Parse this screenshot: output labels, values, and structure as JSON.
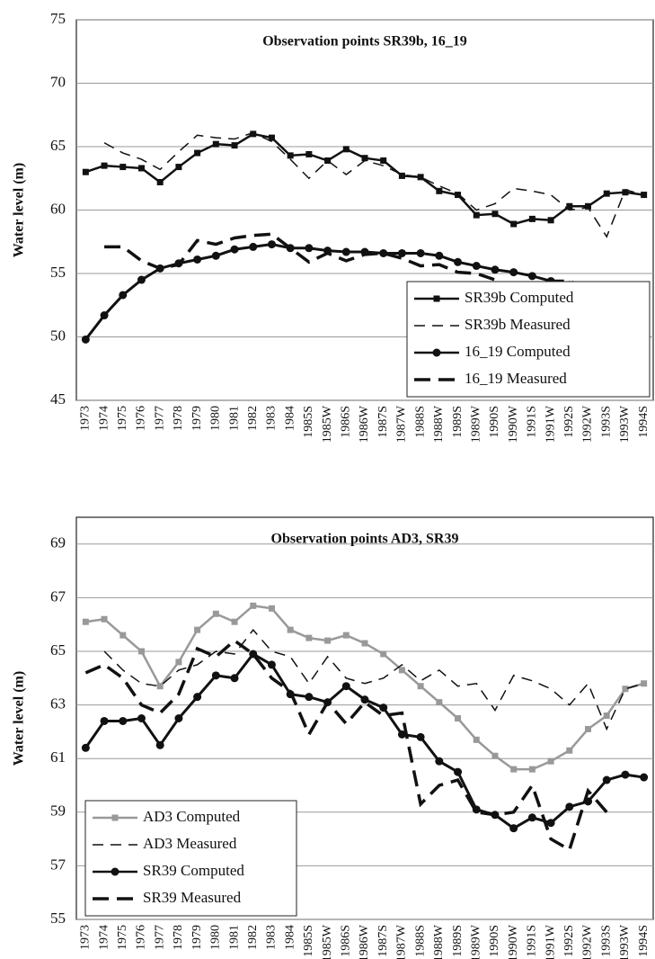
{
  "chart_data": [
    {
      "type": "line",
      "title": "Observation points SR39b, 16_19",
      "ylabel": "Water level (m)",
      "categories": [
        "1973",
        "1974",
        "1975",
        "1976",
        "1977",
        "1978",
        "1979",
        "1980",
        "1981",
        "1982",
        "1983",
        "1984",
        "1985S",
        "1985W",
        "1986S",
        "1986W",
        "1987S",
        "1987W",
        "1988S",
        "1988W",
        "1989S",
        "1989W",
        "1990S",
        "1990W",
        "1991S",
        "1991W",
        "1992S",
        "1992W",
        "1993S",
        "1993W",
        "1994S"
      ],
      "ylim": [
        45,
        75
      ],
      "yticks": [
        45,
        50,
        55,
        60,
        65,
        70,
        75
      ],
      "grid": true,
      "legend": "lower right",
      "series": [
        {
          "name": "SR39b Computed",
          "color": "#111111",
          "dash": false,
          "marker": "square",
          "values": [
            63.0,
            63.5,
            63.4,
            63.3,
            62.2,
            63.4,
            64.5,
            65.2,
            65.1,
            66.0,
            65.7,
            64.3,
            64.4,
            63.9,
            64.8,
            64.1,
            63.9,
            62.7,
            62.6,
            61.5,
            61.2,
            59.6,
            59.7,
            58.9,
            59.3,
            59.2,
            60.3,
            60.3,
            61.3,
            61.4,
            61.2
          ]
        },
        {
          "name": "SR39b Measured",
          "color": "#111111",
          "dash": true,
          "marker": null,
          "values": [
            null,
            65.3,
            64.5,
            64.0,
            63.2,
            64.6,
            65.9,
            65.7,
            65.6,
            66.1,
            65.4,
            64.0,
            62.5,
            63.9,
            62.8,
            63.9,
            63.5,
            62.8,
            62.6,
            61.9,
            61.3,
            60.0,
            60.5,
            61.7,
            61.5,
            61.2,
            60.0,
            60.2,
            57.9,
            61.6,
            61.2
          ]
        },
        {
          "name": "16_19 Computed",
          "color": "#111111",
          "dash": false,
          "marker": "circle",
          "values": [
            49.8,
            51.7,
            53.3,
            54.5,
            55.4,
            55.8,
            56.1,
            56.4,
            56.9,
            57.1,
            57.3,
            57.0,
            57.0,
            56.8,
            56.7,
            56.7,
            56.6,
            56.6,
            56.6,
            56.4,
            55.9,
            55.6,
            55.3,
            55.1,
            54.8,
            54.4,
            54.1,
            53.9,
            53.6,
            53.5,
            52.9
          ]
        },
        {
          "name": "16_19 Measured",
          "color": "#111111",
          "dash": true,
          "marker": null,
          "values": [
            null,
            57.1,
            57.1,
            56.0,
            55.4,
            55.7,
            57.6,
            57.3,
            57.8,
            58.0,
            58.1,
            57.0,
            55.9,
            56.6,
            56.0,
            56.5,
            56.6,
            56.2,
            55.6,
            55.7,
            55.1,
            55.0,
            54.5,
            53.9,
            53.8,
            54.4,
            54.4,
            53.8,
            null,
            null,
            null
          ]
        }
      ]
    },
    {
      "type": "line",
      "title": "Observation points AD3, SR39",
      "ylabel": "Water level (m)",
      "categories": [
        "1973",
        "1974",
        "1975",
        "1976",
        "1977",
        "1978",
        "1979",
        "1980",
        "1981",
        "1982",
        "1983",
        "1984",
        "1985S",
        "1985W",
        "1986S",
        "1986W",
        "1987S",
        "1987W",
        "1988S",
        "1988W",
        "1989S",
        "1989W",
        "1990S",
        "1990W",
        "1991S",
        "1991W",
        "1992S",
        "1992W",
        "1993S",
        "1993W",
        "1994S"
      ],
      "ylim": [
        55,
        70
      ],
      "yticks": [
        55,
        57,
        59,
        61,
        63,
        65,
        67,
        69
      ],
      "grid": true,
      "legend": "lower left",
      "series": [
        {
          "name": "AD3 Computed",
          "color": "#999999",
          "dash": false,
          "marker": "square",
          "values": [
            66.1,
            66.2,
            65.6,
            65.0,
            63.7,
            64.6,
            65.8,
            66.4,
            66.1,
            66.7,
            66.6,
            65.8,
            65.5,
            65.4,
            65.6,
            65.3,
            64.9,
            64.3,
            63.7,
            63.1,
            62.5,
            61.7,
            61.1,
            60.6,
            60.6,
            60.9,
            61.3,
            62.1,
            62.6,
            63.6,
            63.8
          ]
        },
        {
          "name": "AD3 Measured",
          "color": "#111111",
          "dash": true,
          "marker": null,
          "values": [
            null,
            65.0,
            64.3,
            63.8,
            63.7,
            64.3,
            64.5,
            65.0,
            64.9,
            65.8,
            65.0,
            64.8,
            63.8,
            64.8,
            64.0,
            63.8,
            64.0,
            64.5,
            63.9,
            64.3,
            63.7,
            63.8,
            62.8,
            64.1,
            63.9,
            63.6,
            63.0,
            63.8,
            62.1,
            63.6,
            63.8
          ]
        },
        {
          "name": "SR39 Computed",
          "color": "#111111",
          "dash": false,
          "marker": "circle",
          "values": [
            61.4,
            62.4,
            62.4,
            62.5,
            61.5,
            62.5,
            63.3,
            64.1,
            64.0,
            64.9,
            64.5,
            63.4,
            63.3,
            63.1,
            63.7,
            63.2,
            62.9,
            61.9,
            61.8,
            60.9,
            60.5,
            59.1,
            58.9,
            58.4,
            58.8,
            58.6,
            59.2,
            59.4,
            60.2,
            60.4,
            60.3
          ]
        },
        {
          "name": "SR39 Measured",
          "color": "#111111",
          "dash": true,
          "marker": null,
          "values": [
            64.2,
            64.5,
            64.0,
            63.0,
            62.7,
            63.4,
            65.1,
            64.8,
            65.4,
            64.9,
            64.0,
            63.5,
            61.9,
            63.1,
            62.3,
            63.1,
            62.6,
            62.7,
            59.3,
            60.0,
            60.2,
            59.0,
            58.9,
            59.0,
            60.0,
            58.0,
            57.6,
            59.8,
            59.0,
            null,
            null
          ]
        }
      ]
    }
  ]
}
